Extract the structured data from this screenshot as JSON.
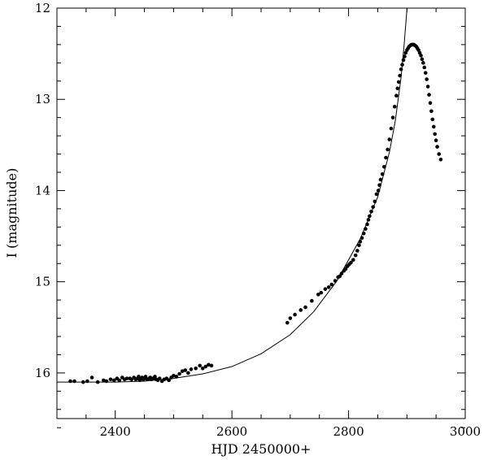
{
  "chart_data": {
    "type": "scatter",
    "title": "",
    "xlabel": "HJD 2450000+",
    "ylabel": "I (magnitude)",
    "xlim": [
      2300,
      3000
    ],
    "ylim": [
      16.5,
      12
    ],
    "y_inverted": true,
    "grid": false,
    "x_ticks": [
      2400,
      2600,
      2800,
      3000
    ],
    "x_tick_labels": [
      "2400",
      "2600",
      "2800",
      "3000"
    ],
    "y_ticks": [
      12,
      13,
      14,
      15,
      16
    ],
    "y_tick_labels": [
      "12",
      "13",
      "14",
      "15",
      "16"
    ],
    "series": [
      {
        "kind": "points",
        "color": "#000000",
        "points": [
          [
            2323,
            16.09
          ],
          [
            2330,
            16.09
          ],
          [
            2345,
            16.1
          ],
          [
            2352,
            16.09
          ],
          [
            2360,
            16.05
          ],
          [
            2370,
            16.1
          ],
          [
            2380,
            16.08
          ],
          [
            2385,
            16.09
          ],
          [
            2392,
            16.07
          ],
          [
            2398,
            16.08
          ],
          [
            2403,
            16.06
          ],
          [
            2407,
            16.08
          ],
          [
            2412,
            16.05
          ],
          [
            2416,
            16.07
          ],
          [
            2420,
            16.06
          ],
          [
            2425,
            16.06
          ],
          [
            2428,
            16.07
          ],
          [
            2432,
            16.05
          ],
          [
            2435,
            16.07
          ],
          [
            2438,
            16.06
          ],
          [
            2440,
            16.04
          ],
          [
            2442,
            16.08
          ],
          [
            2444,
            16.06
          ],
          [
            2446,
            16.05
          ],
          [
            2448,
            16.07
          ],
          [
            2450,
            16.06
          ],
          [
            2452,
            16.04
          ],
          [
            2455,
            16.07
          ],
          [
            2458,
            16.06
          ],
          [
            2460,
            16.05
          ],
          [
            2462,
            16.07
          ],
          [
            2465,
            16.06
          ],
          [
            2468,
            16.04
          ],
          [
            2470,
            16.07
          ],
          [
            2473,
            16.08
          ],
          [
            2476,
            16.06
          ],
          [
            2480,
            16.09
          ],
          [
            2484,
            16.07
          ],
          [
            2488,
            16.06
          ],
          [
            2492,
            16.08
          ],
          [
            2496,
            16.05
          ],
          [
            2500,
            16.03
          ],
          [
            2505,
            16.04
          ],
          [
            2510,
            16.01
          ],
          [
            2515,
            15.98
          ],
          [
            2520,
            15.97
          ],
          [
            2525,
            16.0
          ],
          [
            2530,
            15.96
          ],
          [
            2538,
            15.95
          ],
          [
            2545,
            15.92
          ],
          [
            2550,
            15.95
          ],
          [
            2555,
            15.93
          ],
          [
            2560,
            15.91
          ],
          [
            2565,
            15.92
          ],
          [
            2695,
            15.45
          ],
          [
            2700,
            15.4
          ],
          [
            2708,
            15.36
          ],
          [
            2718,
            15.31
          ],
          [
            2726,
            15.28
          ],
          [
            2737,
            15.21
          ],
          [
            2748,
            15.14
          ],
          [
            2753,
            15.12
          ],
          [
            2760,
            15.08
          ],
          [
            2766,
            15.06
          ],
          [
            2771,
            15.03
          ],
          [
            2777,
            14.99
          ],
          [
            2782,
            14.95
          ],
          [
            2785,
            14.94
          ],
          [
            2788,
            14.91
          ],
          [
            2792,
            14.88
          ],
          [
            2795,
            14.86
          ],
          [
            2798,
            14.83
          ],
          [
            2801,
            14.81
          ],
          [
            2804,
            14.79
          ],
          [
            2808,
            14.76
          ],
          [
            2812,
            14.71
          ],
          [
            2815,
            14.66
          ],
          [
            2818,
            14.6
          ],
          [
            2820,
            14.56
          ],
          [
            2823,
            14.52
          ],
          [
            2826,
            14.47
          ],
          [
            2829,
            14.42
          ],
          [
            2832,
            14.37
          ],
          [
            2834,
            14.32
          ],
          [
            2836,
            14.28
          ],
          [
            2839,
            14.23
          ],
          [
            2842,
            14.18
          ],
          [
            2845,
            14.12
          ],
          [
            2848,
            14.04
          ],
          [
            2851,
            14.0
          ],
          [
            2853,
            13.94
          ],
          [
            2855,
            13.88
          ],
          [
            2858,
            13.82
          ],
          [
            2861,
            13.74
          ],
          [
            2864,
            13.64
          ],
          [
            2867,
            13.55
          ],
          [
            2870,
            13.44
          ],
          [
            2873,
            13.32
          ],
          [
            2876,
            13.2
          ],
          [
            2879,
            13.08
          ],
          [
            2882,
            12.96
          ],
          [
            2884,
            12.88
          ],
          [
            2886,
            12.81
          ],
          [
            2888,
            12.74
          ],
          [
            2890,
            12.67
          ],
          [
            2892,
            12.62
          ],
          [
            2894,
            12.57
          ],
          [
            2896,
            12.53
          ],
          [
            2898,
            12.49
          ],
          [
            2900,
            12.46
          ],
          [
            2902,
            12.44
          ],
          [
            2904,
            12.42
          ],
          [
            2906,
            12.41
          ],
          [
            2908,
            12.4
          ],
          [
            2910,
            12.4
          ],
          [
            2912,
            12.4
          ],
          [
            2914,
            12.41
          ],
          [
            2916,
            12.42
          ],
          [
            2918,
            12.44
          ],
          [
            2920,
            12.46
          ],
          [
            2922,
            12.49
          ],
          [
            2924,
            12.52
          ],
          [
            2926,
            12.56
          ],
          [
            2928,
            12.6
          ],
          [
            2930,
            12.65
          ],
          [
            2932,
            12.71
          ],
          [
            2934,
            12.78
          ],
          [
            2936,
            12.86
          ],
          [
            2938,
            12.95
          ],
          [
            2940,
            13.04
          ],
          [
            2942,
            13.13
          ],
          [
            2944,
            13.22
          ],
          [
            2946,
            13.3
          ],
          [
            2948,
            13.38
          ],
          [
            2950,
            13.45
          ],
          [
            2952,
            13.52
          ],
          [
            2955,
            13.6
          ],
          [
            2958,
            13.66
          ]
        ]
      },
      {
        "kind": "curve",
        "color": "#000000",
        "points": [
          [
            2300,
            16.1
          ],
          [
            2400,
            16.1
          ],
          [
            2450,
            16.09
          ],
          [
            2500,
            16.06
          ],
          [
            2550,
            16.01
          ],
          [
            2600,
            15.93
          ],
          [
            2650,
            15.79
          ],
          [
            2700,
            15.58
          ],
          [
            2740,
            15.33
          ],
          [
            2780,
            14.99
          ],
          [
            2820,
            14.53
          ],
          [
            2850,
            14.07
          ],
          [
            2870,
            13.58
          ],
          [
            2880,
            13.24
          ],
          [
            2890,
            12.76
          ],
          [
            2895,
            12.42
          ],
          [
            2900,
            12.02
          ],
          [
            2902,
            11.8
          ]
        ]
      }
    ]
  }
}
